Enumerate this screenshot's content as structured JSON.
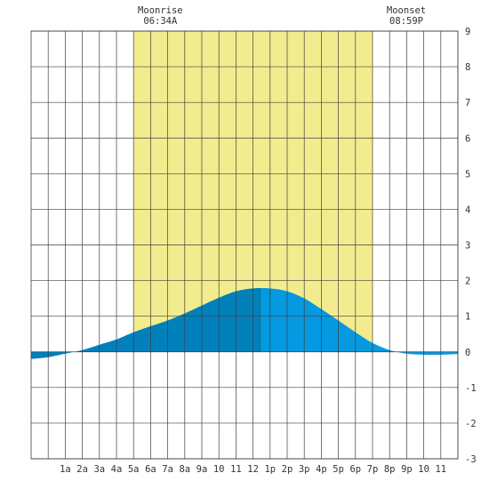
{
  "chart_data": {
    "type": "area",
    "title": "",
    "xlabel": "",
    "ylabel": "",
    "xlim": [
      -1,
      24
    ],
    "ylim": [
      -3,
      9
    ],
    "y_ticks": [
      -3,
      -2,
      -1,
      0,
      1,
      2,
      3,
      4,
      5,
      6,
      7,
      8,
      9
    ],
    "x_ticks": [
      {
        "x": 1,
        "label": "1a"
      },
      {
        "x": 2,
        "label": "2a"
      },
      {
        "x": 3,
        "label": "3a"
      },
      {
        "x": 4,
        "label": "4a"
      },
      {
        "x": 5,
        "label": "5a"
      },
      {
        "x": 6,
        "label": "6a"
      },
      {
        "x": 7,
        "label": "7a"
      },
      {
        "x": 8,
        "label": "8a"
      },
      {
        "x": 9,
        "label": "9a"
      },
      {
        "x": 10,
        "label": "10"
      },
      {
        "x": 11,
        "label": "11"
      },
      {
        "x": 12,
        "label": "12"
      },
      {
        "x": 13,
        "label": "1p"
      },
      {
        "x": 14,
        "label": "2p"
      },
      {
        "x": 15,
        "label": "3p"
      },
      {
        "x": 16,
        "label": "4p"
      },
      {
        "x": 17,
        "label": "5p"
      },
      {
        "x": 18,
        "label": "6p"
      },
      {
        "x": 19,
        "label": "7p"
      },
      {
        "x": 20,
        "label": "8p"
      },
      {
        "x": 21,
        "label": "9p"
      },
      {
        "x": 22,
        "label": "10"
      },
      {
        "x": 23,
        "label": "11"
      }
    ],
    "grid": true,
    "highlight_range": [
      5,
      19
    ],
    "annotations": [
      {
        "title": "Moonrise",
        "time": "06:34A",
        "x": 6.57
      },
      {
        "title": "Moonset",
        "time": "08:59P",
        "x": 20.98
      }
    ],
    "series": [
      {
        "x": [
          -1,
          0,
          1,
          2,
          3,
          4,
          5,
          6,
          7,
          8,
          9,
          10,
          11,
          12,
          13,
          14,
          15,
          16,
          17,
          18,
          19,
          20,
          21,
          22,
          23,
          24
        ],
        "y": [
          -0.2,
          -0.15,
          -0.05,
          0.05,
          0.2,
          0.35,
          0.55,
          0.72,
          0.88,
          1.08,
          1.3,
          1.52,
          1.7,
          1.78,
          1.78,
          1.7,
          1.5,
          1.2,
          0.88,
          0.55,
          0.25,
          0.05,
          -0.05,
          -0.08,
          -0.08,
          -0.06
        ]
      }
    ],
    "colors": {
      "highlight": "#f2ec8e",
      "fill_rising": "#0180bb",
      "fill_falling": "#0499e0",
      "fill_negative": "#1b7fc0",
      "grid": "#404040"
    }
  }
}
